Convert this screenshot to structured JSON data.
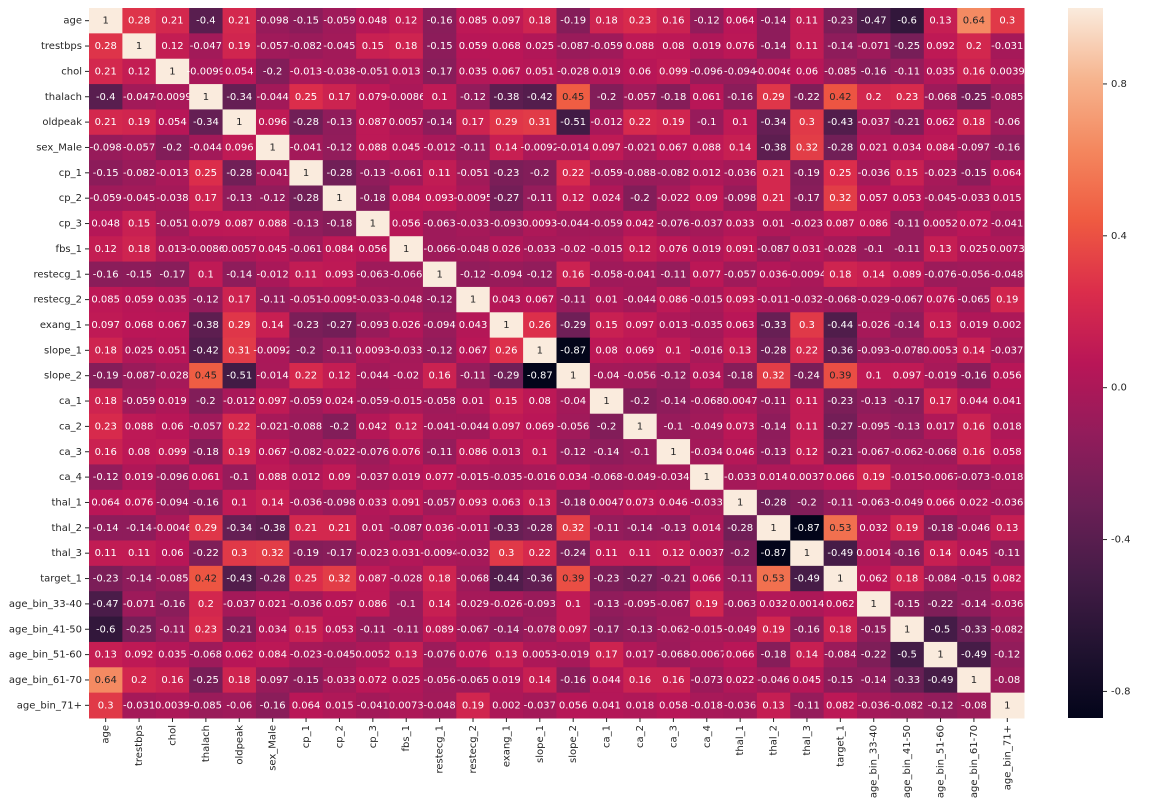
{
  "chart_data": {
    "type": "heatmap",
    "categories": [
      "age",
      "trestbps",
      "chol",
      "thalach",
      "oldpeak",
      "sex_Male",
      "cp_1",
      "cp_2",
      "cp_3",
      "fbs_1",
      "restecg_1",
      "restecg_2",
      "exang_1",
      "slope_1",
      "slope_2",
      "ca_1",
      "ca_2",
      "ca_3",
      "ca_4",
      "thal_1",
      "thal_2",
      "thal_3",
      "target_1",
      "age_bin_33-40",
      "age_bin_41-50",
      "age_bin_51-60",
      "age_bin_61-70",
      "age_bin_71+"
    ],
    "z": [
      [
        1,
        0.28,
        0.21,
        -0.4,
        0.21,
        -0.098,
        -0.15,
        -0.059,
        0.048,
        0.12,
        -0.16,
        0.085,
        0.097,
        0.18,
        -0.19,
        0.18,
        0.23,
        0.16,
        -0.12,
        0.064,
        -0.14,
        0.11,
        -0.23,
        -0.47,
        -0.6,
        0.13,
        0.64,
        0.3
      ],
      [
        0.28,
        1,
        0.12,
        -0.047,
        0.19,
        -0.057,
        -0.082,
        -0.045,
        0.15,
        0.18,
        -0.15,
        0.059,
        0.068,
        0.025,
        -0.087,
        -0.059,
        0.088,
        0.08,
        0.019,
        0.076,
        -0.14,
        0.11,
        -0.14,
        -0.071,
        -0.25,
        0.092,
        0.2,
        -0.031
      ],
      [
        0.21,
        0.12,
        1,
        -0.0099,
        0.054,
        -0.2,
        -0.013,
        -0.038,
        -0.051,
        0.013,
        -0.17,
        0.035,
        0.067,
        0.051,
        -0.028,
        0.019,
        0.06,
        0.099,
        -0.096,
        -0.094,
        -0.0046,
        0.06,
        -0.085,
        -0.16,
        -0.11,
        0.035,
        0.16,
        0.0039
      ],
      [
        -0.4,
        -0.047,
        -0.0099,
        1,
        -0.34,
        -0.044,
        0.25,
        0.17,
        0.079,
        -0.0086,
        0.1,
        -0.12,
        -0.38,
        -0.42,
        0.45,
        -0.2,
        -0.057,
        -0.18,
        0.061,
        -0.16,
        0.29,
        -0.22,
        0.42,
        0.2,
        0.23,
        -0.068,
        -0.25,
        -0.085
      ],
      [
        0.21,
        0.19,
        0.054,
        -0.34,
        1,
        0.096,
        -0.28,
        -0.13,
        0.087,
        0.0057,
        -0.14,
        0.17,
        0.29,
        0.31,
        -0.51,
        -0.012,
        0.22,
        0.19,
        -0.1,
        0.1,
        -0.34,
        0.3,
        -0.43,
        -0.037,
        -0.21,
        0.062,
        0.18,
        -0.06
      ],
      [
        -0.098,
        -0.057,
        -0.2,
        -0.044,
        0.096,
        1,
        -0.041,
        -0.12,
        0.088,
        0.045,
        -0.012,
        -0.11,
        0.14,
        -0.0092,
        -0.014,
        0.097,
        -0.021,
        0.067,
        0.088,
        0.14,
        -0.38,
        0.32,
        -0.28,
        0.021,
        0.034,
        0.084,
        -0.097,
        -0.16
      ],
      [
        -0.15,
        -0.082,
        -0.013,
        0.25,
        -0.28,
        -0.041,
        1,
        -0.28,
        -0.13,
        -0.061,
        0.11,
        -0.051,
        -0.23,
        -0.2,
        0.22,
        -0.059,
        -0.088,
        -0.082,
        0.012,
        -0.036,
        0.21,
        -0.19,
        0.25,
        -0.036,
        0.15,
        -0.023,
        -0.15,
        0.064
      ],
      [
        -0.059,
        -0.045,
        -0.038,
        0.17,
        -0.13,
        -0.12,
        -0.28,
        1,
        -0.18,
        0.084,
        0.093,
        -0.0095,
        -0.27,
        -0.11,
        0.12,
        0.024,
        -0.2,
        -0.022,
        0.09,
        -0.098,
        0.21,
        -0.17,
        0.32,
        0.057,
        0.053,
        -0.045,
        -0.033,
        0.015
      ],
      [
        0.048,
        0.15,
        -0.051,
        0.079,
        0.087,
        0.088,
        -0.13,
        -0.18,
        1,
        0.056,
        -0.063,
        -0.033,
        -0.093,
        0.0093,
        -0.044,
        -0.059,
        0.042,
        -0.076,
        -0.037,
        0.033,
        0.01,
        -0.023,
        0.087,
        0.086,
        -0.11,
        0.0052,
        0.072,
        -0.041
      ],
      [
        0.12,
        0.18,
        0.013,
        -0.0086,
        0.0057,
        0.045,
        -0.061,
        0.084,
        0.056,
        1,
        -0.066,
        -0.048,
        0.026,
        -0.033,
        -0.02,
        -0.015,
        0.12,
        0.076,
        0.019,
        0.091,
        -0.087,
        0.031,
        -0.028,
        -0.1,
        -0.11,
        0.13,
        0.025,
        0.0073
      ],
      [
        -0.16,
        -0.15,
        -0.17,
        0.1,
        -0.14,
        -0.012,
        0.11,
        0.093,
        -0.063,
        -0.066,
        1,
        -0.12,
        -0.094,
        -0.12,
        0.16,
        -0.058,
        -0.041,
        -0.11,
        0.077,
        -0.057,
        0.036,
        -0.0094,
        0.18,
        0.14,
        0.089,
        -0.076,
        -0.056,
        -0.048
      ],
      [
        0.085,
        0.059,
        0.035,
        -0.12,
        0.17,
        -0.11,
        -0.051,
        -0.0095,
        -0.033,
        -0.048,
        -0.12,
        1,
        0.043,
        0.067,
        -0.11,
        0.01,
        -0.044,
        0.086,
        -0.015,
        0.093,
        -0.011,
        -0.032,
        -0.068,
        -0.029,
        -0.067,
        0.076,
        -0.065,
        0.19
      ],
      [
        0.097,
        0.068,
        0.067,
        -0.38,
        0.29,
        0.14,
        -0.23,
        -0.27,
        -0.093,
        0.026,
        -0.094,
        0.043,
        1,
        0.26,
        -0.29,
        0.15,
        0.097,
        0.013,
        -0.035,
        0.063,
        -0.33,
        0.3,
        -0.44,
        -0.026,
        -0.14,
        0.13,
        0.019,
        0.002
      ],
      [
        0.18,
        0.025,
        0.051,
        -0.42,
        0.31,
        -0.0092,
        -0.2,
        -0.11,
        0.0093,
        -0.033,
        -0.12,
        0.067,
        0.26,
        1,
        -0.87,
        0.08,
        0.069,
        0.1,
        -0.016,
        0.13,
        -0.28,
        0.22,
        -0.36,
        -0.093,
        -0.078,
        0.0053,
        0.14,
        -0.037
      ],
      [
        -0.19,
        -0.087,
        -0.028,
        0.45,
        -0.51,
        -0.014,
        0.22,
        0.12,
        -0.044,
        -0.02,
        0.16,
        -0.11,
        -0.29,
        -0.87,
        1,
        -0.04,
        -0.056,
        -0.12,
        0.034,
        -0.18,
        0.32,
        -0.24,
        0.39,
        0.1,
        0.097,
        -0.019,
        -0.16,
        0.056
      ],
      [
        0.18,
        -0.059,
        0.019,
        -0.2,
        -0.012,
        0.097,
        -0.059,
        0.024,
        -0.059,
        -0.015,
        -0.058,
        0.01,
        0.15,
        0.08,
        -0.04,
        1,
        -0.2,
        -0.14,
        -0.068,
        0.0047,
        -0.11,
        0.11,
        -0.23,
        -0.13,
        -0.17,
        0.17,
        0.044,
        0.041
      ],
      [
        0.23,
        0.088,
        0.06,
        -0.057,
        0.22,
        -0.021,
        -0.088,
        -0.2,
        0.042,
        0.12,
        -0.041,
        -0.044,
        0.097,
        0.069,
        -0.056,
        -0.2,
        1,
        -0.1,
        -0.049,
        0.073,
        -0.14,
        0.11,
        -0.27,
        -0.095,
        -0.13,
        0.017,
        0.16,
        0.018
      ],
      [
        0.16,
        0.08,
        0.099,
        -0.18,
        0.19,
        0.067,
        -0.082,
        -0.022,
        -0.076,
        0.076,
        -0.11,
        0.086,
        0.013,
        0.1,
        -0.12,
        -0.14,
        -0.1,
        1,
        -0.034,
        0.046,
        -0.13,
        0.12,
        -0.21,
        -0.067,
        -0.062,
        -0.068,
        0.16,
        0.058
      ],
      [
        -0.12,
        0.019,
        -0.096,
        0.061,
        -0.1,
        0.088,
        0.012,
        0.09,
        -0.037,
        0.019,
        0.077,
        -0.015,
        -0.035,
        -0.016,
        0.034,
        -0.068,
        -0.049,
        -0.034,
        1,
        -0.033,
        0.014,
        0.0037,
        0.066,
        0.19,
        -0.015,
        -0.0067,
        -0.073,
        -0.018
      ],
      [
        0.064,
        0.076,
        -0.094,
        -0.16,
        0.1,
        0.14,
        -0.036,
        -0.098,
        0.033,
        0.091,
        -0.057,
        0.093,
        0.063,
        0.13,
        -0.18,
        0.0047,
        0.073,
        0.046,
        -0.033,
        1,
        -0.28,
        -0.2,
        -0.11,
        -0.063,
        -0.049,
        0.066,
        0.022,
        -0.036
      ],
      [
        -0.14,
        -0.14,
        -0.0046,
        0.29,
        -0.34,
        -0.38,
        0.21,
        0.21,
        0.01,
        -0.087,
        0.036,
        -0.011,
        -0.33,
        -0.28,
        0.32,
        -0.11,
        -0.14,
        -0.13,
        0.014,
        -0.28,
        1,
        -0.87,
        0.53,
        0.032,
        0.19,
        -0.18,
        -0.046,
        0.13
      ],
      [
        0.11,
        0.11,
        0.06,
        -0.22,
        0.3,
        0.32,
        -0.19,
        -0.17,
        -0.023,
        0.031,
        -0.0094,
        -0.032,
        0.3,
        0.22,
        -0.24,
        0.11,
        0.11,
        0.12,
        0.0037,
        -0.2,
        -0.87,
        1,
        -0.49,
        0.0014,
        -0.16,
        0.14,
        0.045,
        -0.11
      ],
      [
        -0.23,
        -0.14,
        -0.085,
        0.42,
        -0.43,
        -0.28,
        0.25,
        0.32,
        0.087,
        -0.028,
        0.18,
        -0.068,
        -0.44,
        -0.36,
        0.39,
        -0.23,
        -0.27,
        -0.21,
        0.066,
        -0.11,
        0.53,
        -0.49,
        1,
        0.062,
        0.18,
        -0.084,
        -0.15,
        0.082
      ],
      [
        -0.47,
        -0.071,
        -0.16,
        0.2,
        -0.037,
        0.021,
        -0.036,
        0.057,
        0.086,
        -0.1,
        0.14,
        -0.029,
        -0.026,
        -0.093,
        0.1,
        -0.13,
        -0.095,
        -0.067,
        0.19,
        -0.063,
        0.032,
        0.0014,
        0.062,
        1,
        -0.15,
        -0.22,
        -0.14,
        -0.036
      ],
      [
        -0.6,
        -0.25,
        -0.11,
        0.23,
        -0.21,
        0.034,
        0.15,
        0.053,
        -0.11,
        -0.11,
        0.089,
        -0.067,
        -0.14,
        -0.078,
        0.097,
        -0.17,
        -0.13,
        -0.062,
        -0.015,
        -0.049,
        0.19,
        -0.16,
        0.18,
        -0.15,
        1,
        -0.5,
        -0.33,
        -0.082
      ],
      [
        0.13,
        0.092,
        0.035,
        -0.068,
        0.062,
        0.084,
        -0.023,
        -0.045,
        0.0052,
        0.13,
        -0.076,
        0.076,
        0.13,
        0.0053,
        -0.019,
        0.17,
        0.017,
        -0.068,
        -0.0067,
        0.066,
        -0.18,
        0.14,
        -0.084,
        -0.22,
        -0.5,
        1,
        -0.49,
        -0.12
      ],
      [
        0.64,
        0.2,
        0.16,
        -0.25,
        0.18,
        -0.097,
        -0.15,
        -0.033,
        0.072,
        0.025,
        -0.056,
        -0.065,
        0.019,
        0.14,
        -0.16,
        0.044,
        0.16,
        0.16,
        -0.073,
        0.022,
        -0.046,
        0.045,
        -0.15,
        -0.14,
        -0.33,
        -0.49,
        1,
        -0.08
      ],
      [
        0.3,
        -0.031,
        0.0039,
        -0.085,
        -0.06,
        -0.16,
        0.064,
        0.015,
        -0.041,
        0.0073,
        -0.048,
        0.19,
        0.002,
        -0.037,
        0.056,
        0.041,
        0.018,
        0.058,
        -0.018,
        -0.036,
        0.13,
        -0.11,
        0.082,
        -0.036,
        -0.082,
        -0.12,
        -0.08,
        1
      ]
    ],
    "zlim": [
      -0.87,
      1
    ],
    "zticks": [
      -0.8,
      -0.4,
      {
        "value": 0,
        "label": "0.0"
      },
      0.4,
      0.8
    ],
    "colorscale": [
      "#03051a",
      "#221331",
      "#451c47",
      "#6b1f56",
      "#921c5b",
      "#b91657",
      "#db2d4b",
      "#ef5a41",
      "#f4875e",
      "#f6b48e",
      "#faebdd"
    ]
  }
}
